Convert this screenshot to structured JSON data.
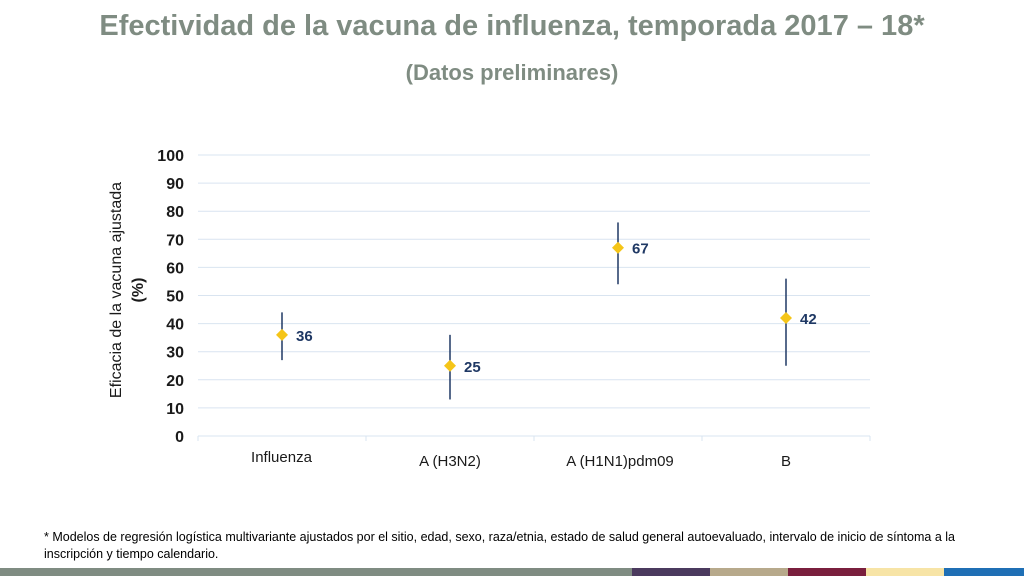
{
  "slide": {
    "title": "Efectividad de la vacuna de influenza, temporada 2017 – 18*",
    "subtitle": "(Datos preliminares)",
    "footnote": "* Modelos de regresión logística multivariante ajustados por el sitio, edad, sexo, raza/etnia, estado de salud general autoevaluado, intervalo de inicio de síntoma a la inscripción y tiempo calendario."
  },
  "chart_data": {
    "type": "scatter",
    "title": "",
    "xlabel": "",
    "ylabel_lines": [
      "Eficacia de la vacuna ajustada",
      "(%)"
    ],
    "ylim": [
      0,
      100
    ],
    "yticks": [
      0,
      10,
      20,
      30,
      40,
      50,
      60,
      70,
      80,
      90,
      100
    ],
    "grid": true,
    "categories": [
      "Influenza",
      "A (H3N2)",
      "A (H1N1)pdm09",
      "B"
    ],
    "series": [
      {
        "values": [
          36,
          25,
          67,
          42
        ],
        "ci_lower": [
          27,
          13,
          54,
          25
        ],
        "ci_upper": [
          44,
          36,
          76,
          56
        ],
        "data_labels": [
          "36",
          "25",
          "67",
          "42"
        ]
      }
    ]
  },
  "colors": {
    "title": "#7f8c82",
    "marker": "#f5c518",
    "error_bar": "#1f3864",
    "data_label": "#1f3864",
    "gridline": "#d9e4f0",
    "axis_text": "#1a1a1a",
    "footer": [
      "#7f8c82",
      "#4b3a5e",
      "#b7a98b",
      "#7a1f3d",
      "#f7e4a6",
      "#1f6fb5"
    ]
  }
}
